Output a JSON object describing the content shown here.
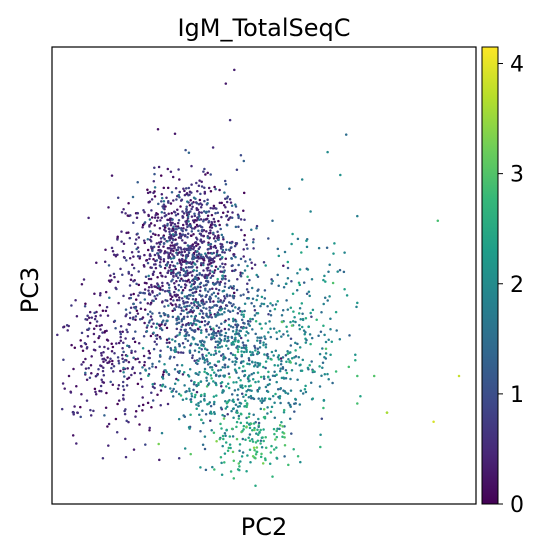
{
  "chart_data": {
    "type": "scatter",
    "title": "IgM_TotalSeqC",
    "xlabel": "PC2",
    "ylabel": "PC3",
    "xlim": [
      0,
      1
    ],
    "ylim": [
      0,
      1
    ],
    "x_ticks": "none",
    "y_ticks": "none",
    "grid": false,
    "legend": "none",
    "colorbar": {
      "placement": "right",
      "colormap": "viridis",
      "range": [
        0,
        4.15
      ],
      "ticks": [
        "0",
        "1",
        "2",
        "3",
        "4"
      ],
      "tick_values": [
        0,
        1,
        2,
        3,
        4
      ],
      "stops": [
        "#440154",
        "#482878",
        "#3e4989",
        "#31688e",
        "#26828e",
        "#1f9e89",
        "#35b779",
        "#6ece58",
        "#b5de2b",
        "#fde725"
      ]
    },
    "points": [
      [
        0.43,
        0.95,
        0.35
      ],
      [
        0.41,
        0.92,
        0.3
      ],
      [
        0.42,
        0.84,
        0.6
      ],
      [
        0.25,
        0.82,
        0.2
      ],
      [
        0.29,
        0.81,
        0.25
      ],
      [
        0.38,
        0.78,
        0.5
      ],
      [
        0.65,
        0.77,
        2.0
      ],
      [
        0.68,
        0.72,
        2.1
      ],
      [
        0.59,
        0.71,
        1.9
      ],
      [
        0.56,
        0.69,
        1.5
      ],
      [
        0.61,
        0.64,
        1.9
      ],
      [
        0.72,
        0.63,
        1.8
      ],
      [
        0.91,
        0.62,
        2.9
      ],
      [
        0.44,
        0.63,
        1.3
      ],
      [
        0.52,
        0.62,
        1.4
      ],
      [
        0.47,
        0.6,
        1.6
      ],
      [
        0.58,
        0.58,
        1.6
      ],
      [
        0.63,
        0.56,
        1.7
      ],
      [
        0.69,
        0.55,
        1.9
      ],
      [
        0.64,
        0.49,
        2.2
      ],
      [
        0.69,
        0.47,
        2.4
      ],
      [
        0.72,
        0.44,
        2.2
      ],
      [
        0.67,
        0.42,
        2.4
      ],
      [
        0.64,
        0.39,
        2.5
      ],
      [
        0.61,
        0.35,
        2.6
      ],
      [
        0.67,
        0.29,
        2.8
      ],
      [
        0.72,
        0.28,
        2.9
      ],
      [
        0.76,
        0.28,
        3.0
      ],
      [
        0.72,
        0.22,
        2.9
      ],
      [
        0.96,
        0.28,
        3.8
      ],
      [
        0.79,
        0.2,
        3.6
      ],
      [
        0.9,
        0.18,
        3.9
      ],
      [
        0.64,
        0.21,
        2.8
      ],
      [
        0.7,
        0.3,
        2.9
      ],
      [
        0.57,
        0.12,
        2.6
      ],
      [
        0.48,
        0.04,
        2.5
      ],
      [
        0.52,
        0.06,
        2.7
      ],
      [
        0.46,
        0.22,
        2.5
      ],
      [
        0.5,
        0.19,
        2.7
      ],
      [
        0.53,
        0.16,
        2.8
      ],
      [
        0.42,
        0.13,
        2.3
      ],
      [
        0.4,
        0.09,
        2.0
      ],
      [
        0.3,
        0.1,
        0.7
      ],
      [
        0.22,
        0.13,
        0.9
      ],
      [
        0.12,
        0.1,
        0.6
      ],
      [
        0.05,
        0.15,
        0.2
      ],
      [
        0.06,
        0.2,
        0.3
      ],
      [
        0.04,
        0.28,
        0.2
      ],
      [
        0.08,
        0.35,
        0.3
      ],
      [
        0.1,
        0.46,
        0.2
      ],
      [
        0.09,
        0.42,
        0.3
      ],
      [
        0.14,
        0.49,
        0.4
      ],
      [
        0.17,
        0.54,
        0.3
      ],
      [
        0.2,
        0.59,
        0.2
      ],
      [
        0.27,
        0.67,
        0.4
      ],
      [
        0.31,
        0.69,
        0.5
      ],
      [
        0.34,
        0.66,
        0.7
      ],
      [
        0.37,
        0.64,
        0.9
      ],
      [
        0.79,
        0.2,
        3.5
      ],
      [
        0.35,
        0.08,
        2.2
      ]
    ],
    "clusters": [
      {
        "cx": 0.3,
        "cy": 0.55,
        "sx": 0.075,
        "sy": 0.075,
        "n": 650,
        "v": 0.35,
        "vs": 0.25
      },
      {
        "cx": 0.36,
        "cy": 0.42,
        "sx": 0.075,
        "sy": 0.08,
        "n": 600,
        "v": 1.15,
        "vs": 0.35
      },
      {
        "cx": 0.43,
        "cy": 0.27,
        "sx": 0.085,
        "sy": 0.07,
        "n": 480,
        "v": 1.85,
        "vs": 0.4
      },
      {
        "cx": 0.47,
        "cy": 0.14,
        "sx": 0.05,
        "sy": 0.035,
        "n": 110,
        "v": 2.65,
        "vs": 0.3
      },
      {
        "cx": 0.15,
        "cy": 0.32,
        "sx": 0.07,
        "sy": 0.08,
        "n": 300,
        "v": 0.4,
        "vs": 0.3
      },
      {
        "cx": 0.56,
        "cy": 0.38,
        "sx": 0.07,
        "sy": 0.1,
        "n": 220,
        "v": 1.9,
        "vs": 0.45
      },
      {
        "cx": 0.33,
        "cy": 0.62,
        "sx": 0.06,
        "sy": 0.06,
        "n": 250,
        "v": 0.8,
        "vs": 0.4
      }
    ]
  }
}
